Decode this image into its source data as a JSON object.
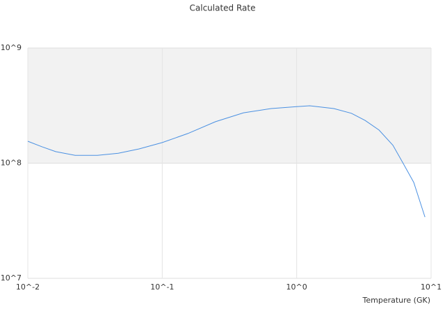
{
  "chart_data": {
    "type": "line",
    "title": "Calculated Rate",
    "x_label": "Temperature (GK)",
    "x_scale": "log",
    "y_scale": "log",
    "xlim": [
      0.01,
      10
    ],
    "ylim": [
      10000000,
      1000000000
    ],
    "xticks": [
      {
        "value": 0.01,
        "label": "10^-2"
      },
      {
        "value": 0.1,
        "label": "10^-1"
      },
      {
        "value": 1,
        "label": "10^0"
      },
      {
        "value": 10,
        "label": "10^1"
      }
    ],
    "yticks": [
      {
        "value": 10000000,
        "label": "10^7"
      },
      {
        "value": 100000000,
        "label": "10^8"
      },
      {
        "value": 1000000000,
        "label": "10^9"
      }
    ],
    "band_color": "#f2f2f2",
    "series": [
      {
        "color": "#4a90e2",
        "x": [
          0.01,
          0.0127,
          0.0161,
          0.0225,
          0.0329,
          0.0471,
          0.0673,
          0.1,
          0.155,
          0.249,
          0.402,
          0.647,
          1,
          1.25,
          1.89,
          2.55,
          3.23,
          4.1,
          5.2,
          6.22,
          7.43,
          9.0
        ],
        "values": [
          155000000.0,
          139000000.0,
          126000000.0,
          117000000.0,
          117000000.0,
          122000000.0,
          133000000.0,
          151000000.0,
          181000000.0,
          229000000.0,
          274000000.0,
          298000000.0,
          310000000.0,
          315000000.0,
          298000000.0,
          271000000.0,
          235000000.0,
          194000000.0,
          143000000.0,
          99000000.0,
          68000000.0,
          34000000.0
        ]
      }
    ]
  }
}
